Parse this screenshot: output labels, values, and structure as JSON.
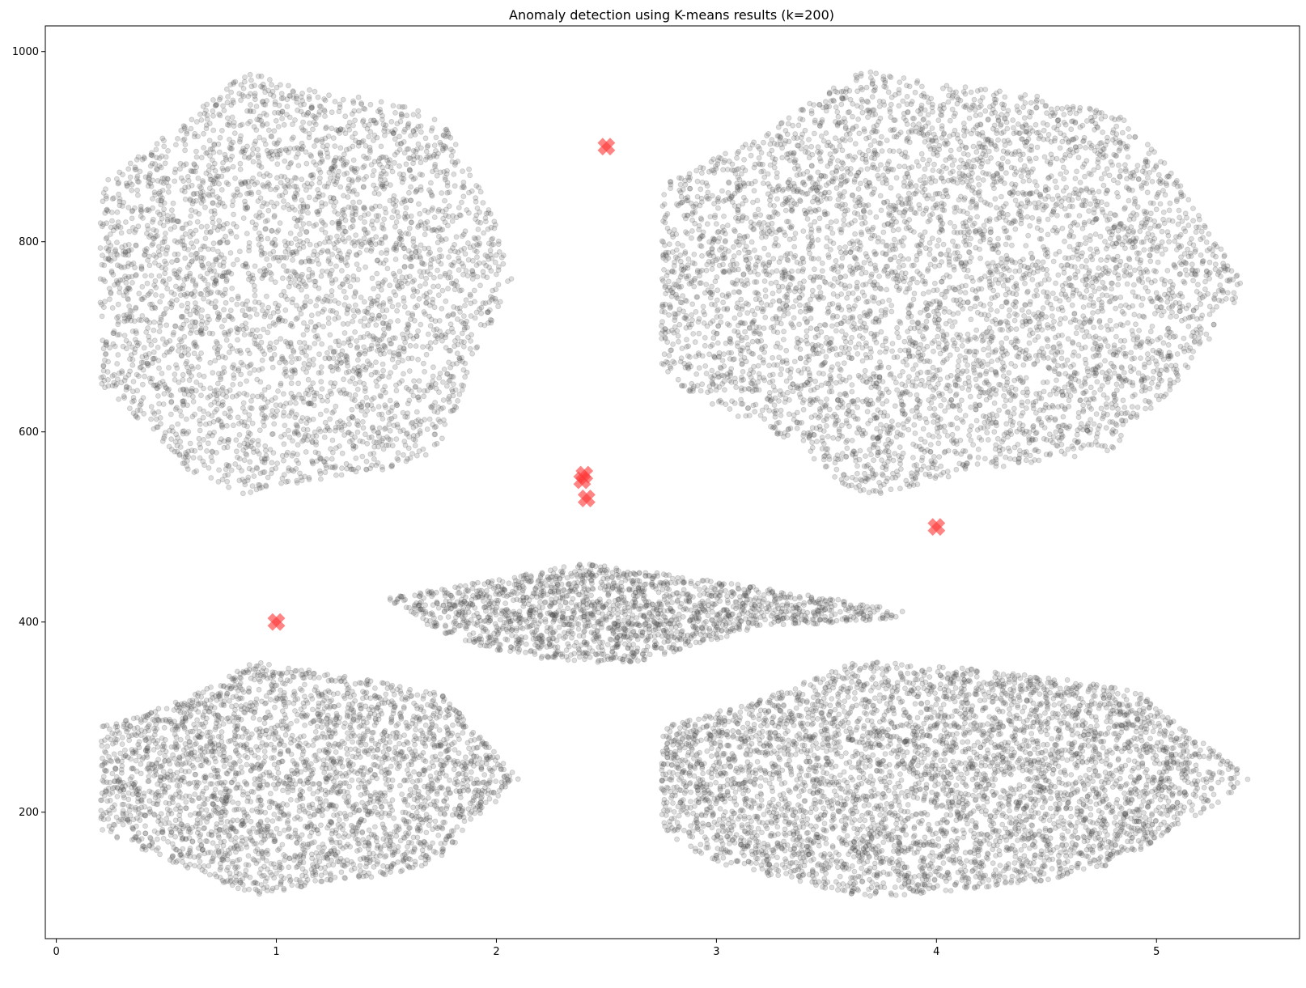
{
  "chart_data": {
    "type": "scatter",
    "title": "Anomaly detection using K-means results (k=200)",
    "xlabel": "",
    "ylabel": "",
    "xlim": [
      -0.05,
      5.65
    ],
    "ylim": [
      67,
      1027
    ],
    "x_ticks": [
      0,
      1,
      2,
      3,
      4,
      5
    ],
    "y_ticks": [
      200,
      400,
      600,
      800,
      1000
    ],
    "grid": false,
    "colors": {
      "points": "#555555",
      "anomalies": "#ff3333"
    },
    "series": [
      {
        "marker": "circle",
        "alpha": 0.2,
        "clusters": [
          {
            "shape": "polygon",
            "count": 3600,
            "vertices": [
              [
                0.2,
                860
              ],
              [
                0.35,
                885
              ],
              [
                0.6,
                930
              ],
              [
                0.85,
                980
              ],
              [
                1.2,
                960
              ],
              [
                1.55,
                945
              ],
              [
                1.75,
                930
              ],
              [
                1.95,
                850
              ],
              [
                2.08,
                760
              ],
              [
                1.9,
                680
              ],
              [
                1.75,
                580
              ],
              [
                1.5,
                560
              ],
              [
                1.2,
                550
              ],
              [
                0.85,
                535
              ],
              [
                0.6,
                560
              ],
              [
                0.3,
                630
              ],
              [
                0.2,
                650
              ]
            ]
          },
          {
            "shape": "polygon",
            "count": 5200,
            "vertices": [
              [
                2.75,
                860
              ],
              [
                3.1,
                900
              ],
              [
                3.65,
                980
              ],
              [
                3.95,
                970
              ],
              [
                4.55,
                950
              ],
              [
                4.85,
                930
              ],
              [
                5.05,
                880
              ],
              [
                5.3,
                790
              ],
              [
                5.4,
                752
              ],
              [
                5.25,
                700
              ],
              [
                5.05,
                640
              ],
              [
                4.95,
                620
              ],
              [
                4.8,
                580
              ],
              [
                4.55,
                570
              ],
              [
                4.2,
                560
              ],
              [
                3.65,
                530
              ],
              [
                3.35,
                590
              ],
              [
                3.05,
                620
              ],
              [
                2.75,
                660
              ]
            ]
          },
          {
            "shape": "polygon",
            "count": 1800,
            "vertices": [
              [
                1.5,
                425
              ],
              [
                2.0,
                445
              ],
              [
                2.4,
                462
              ],
              [
                2.8,
                450
              ],
              [
                3.6,
                422
              ],
              [
                3.85,
                412
              ],
              [
                3.8,
                402
              ],
              [
                3.2,
                395
              ],
              [
                2.6,
                355
              ],
              [
                2.2,
                362
              ],
              [
                1.9,
                375
              ],
              [
                1.7,
                395
              ]
            ]
          },
          {
            "shape": "polygon",
            "count": 3000,
            "vertices": [
              [
                0.2,
                290
              ],
              [
                0.6,
                320
              ],
              [
                0.9,
                358
              ],
              [
                1.3,
                345
              ],
              [
                1.75,
                325
              ],
              [
                1.9,
                290
              ],
              [
                2.1,
                235
              ],
              [
                1.95,
                200
              ],
              [
                1.75,
                150
              ],
              [
                1.55,
                135
              ],
              [
                1.3,
                128
              ],
              [
                0.9,
                112
              ],
              [
                0.5,
                150
              ],
              [
                0.2,
                180
              ]
            ]
          },
          {
            "shape": "polygon",
            "count": 4600,
            "vertices": [
              [
                2.75,
                290
              ],
              [
                3.2,
                318
              ],
              [
                3.65,
                360
              ],
              [
                4.3,
                348
              ],
              [
                4.9,
                330
              ],
              [
                5.05,
                300
              ],
              [
                5.35,
                250
              ],
              [
                5.42,
                235
              ],
              [
                5.25,
                205
              ],
              [
                5.05,
                180
              ],
              [
                4.9,
                150
              ],
              [
                4.55,
                130
              ],
              [
                4.2,
                120
              ],
              [
                3.7,
                110
              ],
              [
                3.3,
                130
              ],
              [
                2.95,
                150
              ],
              [
                2.75,
                180
              ]
            ]
          }
        ]
      },
      {
        "name": "",
        "marker": "x",
        "alpha": 0.6,
        "points": [
          {
            "x": 2.5,
            "y": 900
          },
          {
            "x": 2.4,
            "y": 555
          },
          {
            "x": 2.39,
            "y": 549
          },
          {
            "x": 2.41,
            "y": 530
          },
          {
            "x": 4.0,
            "y": 500
          },
          {
            "x": 1.0,
            "y": 400
          }
        ]
      }
    ]
  }
}
